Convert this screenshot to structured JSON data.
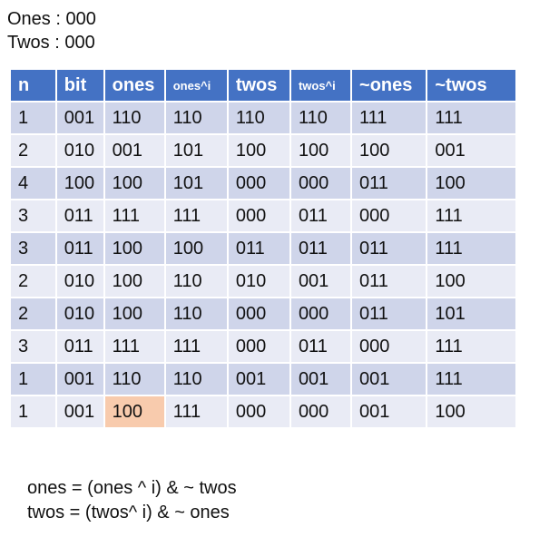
{
  "header": {
    "ones_line": "Ones : 000",
    "twos_line": "Twos : 000"
  },
  "table": {
    "columns": [
      "n",
      "bit",
      "ones",
      "ones^i",
      "twos",
      "twos^i",
      "~ones",
      "~twos"
    ],
    "rows": [
      [
        "1",
        "001",
        "110",
        "110",
        "110",
        "110",
        "111",
        "111"
      ],
      [
        "2",
        "010",
        "001",
        "101",
        "100",
        "100",
        "100",
        "001"
      ],
      [
        "4",
        "100",
        "100",
        "101",
        "000",
        "000",
        "011",
        "100"
      ],
      [
        "3",
        "011",
        "111",
        "111",
        "000",
        "011",
        "000",
        "111"
      ],
      [
        "3",
        "011",
        "100",
        "100",
        "011",
        "011",
        "011",
        "111"
      ],
      [
        "2",
        "010",
        "100",
        "110",
        "010",
        "001",
        "011",
        "100"
      ],
      [
        "2",
        "010",
        "100",
        "110",
        "000",
        "000",
        "011",
        "101"
      ],
      [
        "3",
        "011",
        "111",
        "111",
        "000",
        "011",
        "000",
        "111"
      ],
      [
        "1",
        "001",
        "110",
        "110",
        "001",
        "001",
        "001",
        "111"
      ],
      [
        "1",
        "001",
        "100",
        "111",
        "000",
        "000",
        "001",
        "100"
      ]
    ],
    "colors": {
      "header_bg": "#4472c4",
      "row_odd_bg": "#cfd5ea",
      "row_even_bg": "#e9ebf5",
      "highlight_bg": "#f8cbad"
    }
  },
  "formulas": {
    "ones": "ones = (ones ^ i) & ~ twos",
    "twos": "twos = (twos^ i) & ~ ones"
  }
}
